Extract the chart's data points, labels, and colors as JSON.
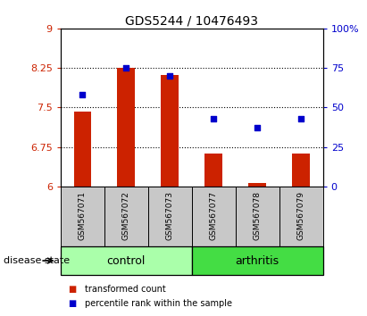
{
  "title": "GDS5244 / 10476493",
  "samples": [
    "GSM567071",
    "GSM567072",
    "GSM567073",
    "GSM567077",
    "GSM567078",
    "GSM567079"
  ],
  "bar_values": [
    7.42,
    8.26,
    8.12,
    6.62,
    6.06,
    6.62
  ],
  "dot_values_pct": [
    58,
    75,
    70,
    43,
    37,
    43
  ],
  "bar_color": "#cc2200",
  "dot_color": "#0000cc",
  "ylim_left": [
    6,
    9
  ],
  "ylim_right": [
    0,
    100
  ],
  "yticks_left": [
    6,
    6.75,
    7.5,
    8.25,
    9
  ],
  "yticks_right": [
    0,
    25,
    50,
    75,
    100
  ],
  "ytick_labels_left": [
    "6",
    "6.75",
    "7.5",
    "8.25",
    "9"
  ],
  "ytick_labels_right": [
    "0",
    "25",
    "50",
    "75",
    "100%"
  ],
  "control_label": "control",
  "arthritis_label": "arthritis",
  "disease_state_label": "disease state",
  "legend_bar_label": "transformed count",
  "legend_dot_label": "percentile rank within the sample",
  "control_color": "#aaffaa",
  "arthritis_color": "#44dd44",
  "label_area_color": "#c8c8c8",
  "dotted_line_color": "#000000",
  "background_color": "#ffffff"
}
